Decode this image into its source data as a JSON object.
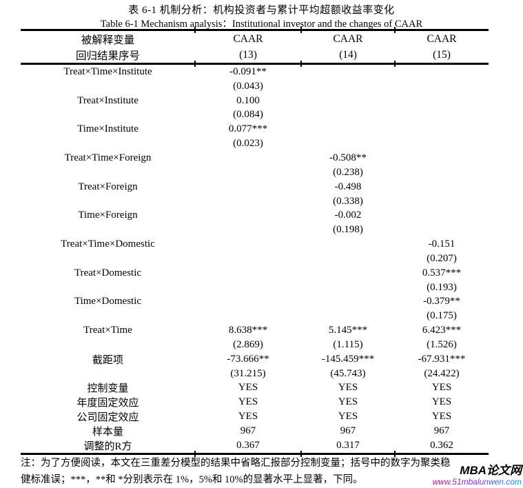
{
  "titles": {
    "zh": "表 6-1 机制分析：机构投资者与累计平均超额收益率变化",
    "en": "Table 6-1 Mechanism analysis：Institutional investor and the changes of CAAR"
  },
  "table": {
    "header": {
      "row1": [
        "被解释变量",
        "CAAR",
        "CAAR",
        "CAAR"
      ],
      "row2": [
        "回归结果序号",
        "(13)",
        "(14)",
        "(15)"
      ]
    },
    "rows": [
      {
        "cells": [
          "Treat×Time×Institute",
          "-0.091**",
          "",
          ""
        ]
      },
      {
        "cells": [
          "",
          "(0.043)",
          "",
          ""
        ]
      },
      {
        "cells": [
          "Treat×Institute",
          "0.100",
          "",
          ""
        ]
      },
      {
        "cells": [
          "",
          "(0.084)",
          "",
          ""
        ]
      },
      {
        "cells": [
          "Time×Institute",
          "0.077***",
          "",
          ""
        ]
      },
      {
        "cells": [
          "",
          "(0.023)",
          "",
          ""
        ]
      },
      {
        "cells": [
          "Treat×Time×Foreign",
          "",
          "-0.508**",
          ""
        ]
      },
      {
        "cells": [
          "",
          "",
          "(0.238)",
          ""
        ]
      },
      {
        "cells": [
          "Treat×Foreign",
          "",
          "-0.498",
          ""
        ]
      },
      {
        "cells": [
          "",
          "",
          "(0.338)",
          ""
        ]
      },
      {
        "cells": [
          "Time×Foreign",
          "",
          "-0.002",
          ""
        ]
      },
      {
        "cells": [
          "",
          "",
          "(0.198)",
          ""
        ]
      },
      {
        "cells": [
          "Treat×Time×Domestic",
          "",
          "",
          "-0.151"
        ]
      },
      {
        "cells": [
          "",
          "",
          "",
          "(0.207)"
        ]
      },
      {
        "cells": [
          "Treat×Domestic",
          "",
          "",
          "0.537***"
        ]
      },
      {
        "cells": [
          "",
          "",
          "",
          "(0.193)"
        ]
      },
      {
        "cells": [
          "Time×Domestic",
          "",
          "",
          "-0.379**"
        ]
      },
      {
        "cells": [
          "",
          "",
          "",
          "(0.175)"
        ]
      },
      {
        "cells": [
          "Treat×Time",
          "8.638***",
          "5.145***",
          "6.423***"
        ]
      },
      {
        "cells": [
          "",
          "(2.869)",
          "(1.115)",
          "(1.526)"
        ]
      },
      {
        "cells": [
          "截距项",
          "-73.666**",
          "-145.459***",
          "-67.931***"
        ]
      },
      {
        "cells": [
          "",
          "(31.215)",
          "(45.743)",
          "(24.422)"
        ]
      },
      {
        "cells": [
          "控制变量",
          "YES",
          "YES",
          "YES"
        ]
      },
      {
        "cells": [
          "年度固定效应",
          "YES",
          "YES",
          "YES"
        ]
      },
      {
        "cells": [
          "公司固定效应",
          "YES",
          "YES",
          "YES"
        ]
      },
      {
        "cells": [
          "样本量",
          "967",
          "967",
          "967"
        ]
      },
      {
        "cells": [
          "调整的R方",
          "0.367",
          "0.317",
          "0.362"
        ]
      }
    ]
  },
  "note": {
    "line1": "注：为了方便阅读，本文在三重差分模型的结果中省略汇报部分控制变量；括号中的数字为聚类稳",
    "line2": "健标准误；***，**和 *分别表示在 1%，5%和 10%的显著水平上显著，下同。"
  },
  "watermark": {
    "name": "MBA论文网",
    "url": "www.51mbalunwen.com",
    "gradient_start": "#e6007e",
    "gradient_end": "#00a0e9"
  }
}
